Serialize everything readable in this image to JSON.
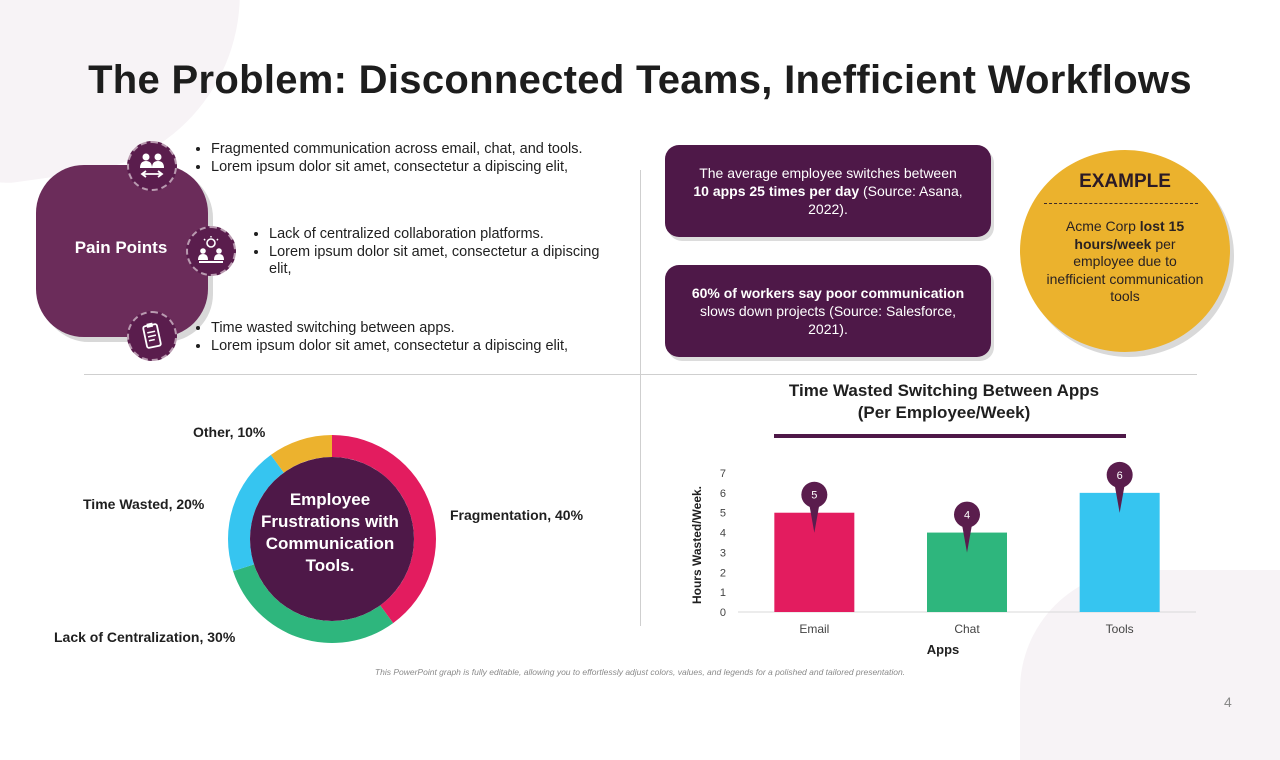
{
  "title": "The Problem: Disconnected Teams, Inefficient Workflows",
  "pain_points": {
    "label": "Pain Points",
    "groups": [
      {
        "icon": "people-exchange-icon",
        "bullets": [
          "Fragmented communication across email, chat, and tools.",
          "Lorem ipsum dolor sit amet, consectetur a  dipiscing elit,"
        ]
      },
      {
        "icon": "idea-meeting-icon",
        "bullets": [
          "Lack of centralized collaboration platforms.",
          "Lorem ipsum dolor sit amet, consectetur a dipiscing elit,"
        ]
      },
      {
        "icon": "clipboard-icon",
        "bullets": [
          "Time wasted switching between apps.",
          "Lorem ipsum dolor sit amet, consectetur a  dipiscing elit,"
        ]
      }
    ]
  },
  "stats": [
    {
      "pre": "The average employee switches between ",
      "bold": "10 apps 25 times per day",
      "post": " (Source: Asana, 2022)."
    },
    {
      "pre": "",
      "bold": "60% of workers say poor communication",
      "post": " slows down projects (Source: Salesforce, 2021)."
    }
  ],
  "example": {
    "heading": "EXAMPLE",
    "pre": "Acme Corp ",
    "bold": "lost 15 hours/week",
    "post": " per employee due to inefficient communication tools"
  },
  "chart_data": [
    {
      "type": "pie",
      "title": "Employee Frustrations with Communication Tools.",
      "categories": [
        "Fragmentation",
        "Lack of Centralization",
        "Time Wasted",
        "Other"
      ],
      "values": [
        40,
        30,
        20,
        10
      ],
      "labels": [
        "Fragmentation, 40%",
        "Lack of Centralization, 30%",
        "Time Wasted, 20%",
        "Other, 10%"
      ],
      "colors": [
        "#e31c5f",
        "#2eb67d",
        "#36c5f0",
        "#ecb22e"
      ]
    },
    {
      "type": "bar",
      "title": "Time Wasted Switching Between Apps",
      "subtitle": "(Per Employee/Week)",
      "categories": [
        "Email",
        "Chat",
        "Tools"
      ],
      "values": [
        5,
        4,
        6
      ],
      "colors": [
        "#e31c5f",
        "#2eb67d",
        "#36c5f0"
      ],
      "xlabel": "Apps",
      "ylabel": "Hours Wasted/Week.",
      "ylim": [
        0,
        7
      ],
      "yticks": [
        "0",
        "1",
        "2",
        "3",
        "4",
        "5",
        "6",
        "7"
      ],
      "grid": false
    }
  ],
  "footnote": "This PowerPoint graph is fully editable, allowing you to effortlessly adjust colors, values, and legends for a polished and tailored presentation.",
  "page_number": "4"
}
